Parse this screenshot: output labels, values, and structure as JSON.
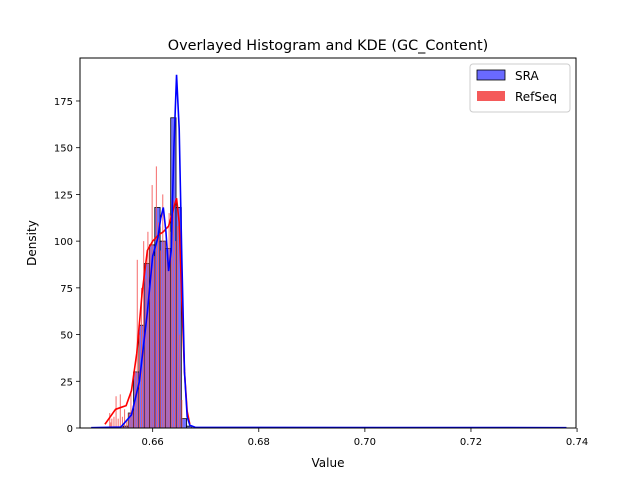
{
  "chart_data": {
    "type": "histogram",
    "title": "Overlayed Histogram and KDE (GC_Content)",
    "xlabel": "Value",
    "ylabel": "Density",
    "xlim": [
      0.6463,
      0.7398
    ],
    "ylim": [
      0,
      198
    ],
    "xticks": [
      0.66,
      0.68,
      0.7,
      0.72,
      0.74
    ],
    "xtick_labels": [
      "0.66",
      "0.68",
      "0.70",
      "0.72",
      "0.74"
    ],
    "yticks": [
      0,
      25,
      50,
      75,
      100,
      125,
      150,
      175
    ],
    "ytick_labels": [
      "0",
      "25",
      "50",
      "75",
      "100",
      "125",
      "150",
      "175"
    ],
    "grid": false,
    "legend_position": "top-right",
    "series": [
      {
        "name": "SRA",
        "kind": "hist+kde",
        "color": "#0000ff",
        "fill": "#6a6aff",
        "bin_width": 0.001,
        "bins": [
          {
            "x0": 0.6544,
            "density": 1
          },
          {
            "x0": 0.6554,
            "density": 8
          },
          {
            "x0": 0.6564,
            "density": 30
          },
          {
            "x0": 0.6574,
            "density": 55
          },
          {
            "x0": 0.6584,
            "density": 88
          },
          {
            "x0": 0.6594,
            "density": 98
          },
          {
            "x0": 0.6604,
            "density": 118
          },
          {
            "x0": 0.6614,
            "density": 100
          },
          {
            "x0": 0.6624,
            "density": 96
          },
          {
            "x0": 0.6634,
            "density": 166
          },
          {
            "x0": 0.6644,
            "density": 118
          },
          {
            "x0": 0.6654,
            "density": 5
          },
          {
            "x0": 0.6664,
            "density": 1
          }
        ],
        "kde": [
          [
            0.6484,
            0.2
          ],
          [
            0.654,
            0.5
          ],
          [
            0.656,
            7
          ],
          [
            0.6575,
            25
          ],
          [
            0.659,
            62
          ],
          [
            0.66,
            92
          ],
          [
            0.661,
            102
          ],
          [
            0.6615,
            112
          ],
          [
            0.662,
            118
          ],
          [
            0.6625,
            105
          ],
          [
            0.663,
            84
          ],
          [
            0.6635,
            95
          ],
          [
            0.664,
            150
          ],
          [
            0.6645,
            189
          ],
          [
            0.665,
            160
          ],
          [
            0.6655,
            90
          ],
          [
            0.666,
            30
          ],
          [
            0.6665,
            6
          ],
          [
            0.667,
            1.5
          ],
          [
            0.668,
            0.4
          ],
          [
            0.67,
            0.3
          ],
          [
            0.738,
            0.2
          ]
        ]
      },
      {
        "name": "RefSeq",
        "kind": "hist+kde",
        "color": "#ff0000",
        "fill": "#f45a5a",
        "bin_width": 0.0002,
        "bins": [
          {
            "x0": 0.6518,
            "density": 8
          },
          {
            "x0": 0.652,
            "density": 3
          },
          {
            "x0": 0.6522,
            "density": 5
          },
          {
            "x0": 0.6526,
            "density": 6
          },
          {
            "x0": 0.653,
            "density": 17
          },
          {
            "x0": 0.6534,
            "density": 5
          },
          {
            "x0": 0.6538,
            "density": 18
          },
          {
            "x0": 0.6542,
            "density": 6
          },
          {
            "x0": 0.6546,
            "density": 10
          },
          {
            "x0": 0.655,
            "density": 4
          },
          {
            "x0": 0.6554,
            "density": 8
          },
          {
            "x0": 0.6558,
            "density": 20
          },
          {
            "x0": 0.6562,
            "density": 12
          },
          {
            "x0": 0.6566,
            "density": 30
          },
          {
            "x0": 0.657,
            "density": 90
          },
          {
            "x0": 0.6574,
            "density": 50
          },
          {
            "x0": 0.6578,
            "density": 75
          },
          {
            "x0": 0.6582,
            "density": 100
          },
          {
            "x0": 0.6586,
            "density": 80
          },
          {
            "x0": 0.659,
            "density": 105
          },
          {
            "x0": 0.6594,
            "density": 96
          },
          {
            "x0": 0.6598,
            "density": 130
          },
          {
            "x0": 0.6602,
            "density": 92
          },
          {
            "x0": 0.6606,
            "density": 140
          },
          {
            "x0": 0.661,
            "density": 110
          },
          {
            "x0": 0.6614,
            "density": 95
          },
          {
            "x0": 0.6618,
            "density": 125
          },
          {
            "x0": 0.6622,
            "density": 100
          },
          {
            "x0": 0.6626,
            "density": 90
          },
          {
            "x0": 0.663,
            "density": 115
          },
          {
            "x0": 0.6634,
            "density": 105
          },
          {
            "x0": 0.6638,
            "density": 122
          },
          {
            "x0": 0.6642,
            "density": 100
          },
          {
            "x0": 0.6646,
            "density": 108
          },
          {
            "x0": 0.665,
            "density": 50
          },
          {
            "x0": 0.6654,
            "density": 15
          }
        ],
        "kde": [
          [
            0.651,
            2
          ],
          [
            0.652,
            6
          ],
          [
            0.653,
            10
          ],
          [
            0.654,
            11
          ],
          [
            0.655,
            12
          ],
          [
            0.656,
            20
          ],
          [
            0.657,
            40
          ],
          [
            0.658,
            72
          ],
          [
            0.659,
            95
          ],
          [
            0.66,
            100
          ],
          [
            0.661,
            103
          ],
          [
            0.662,
            105
          ],
          [
            0.663,
            108
          ],
          [
            0.664,
            118
          ],
          [
            0.6645,
            123
          ],
          [
            0.665,
            110
          ],
          [
            0.6655,
            68
          ],
          [
            0.666,
            30
          ],
          [
            0.6665,
            9
          ],
          [
            0.667,
            2
          ]
        ]
      }
    ]
  }
}
